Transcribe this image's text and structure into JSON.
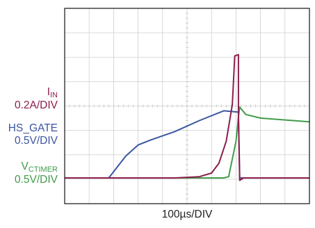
{
  "chart_data": {
    "type": "line",
    "title": "",
    "grid": true,
    "x_divisions": 10,
    "y_divisions": 8,
    "xlabel": "100µs/DIV",
    "x_unit_per_div": "100µs",
    "series": [
      {
        "name_main": "I",
        "name_sub": "IN",
        "scale": "0.2A/DIV",
        "color": "#8c1d4a",
        "x_div": [
          0,
          1.8,
          4.5,
          5.5,
          6.0,
          6.3,
          6.6,
          6.85,
          6.95,
          7.1,
          7.1,
          7.15,
          7.3,
          10
        ],
        "y_div": [
          0.0,
          0.0,
          0.0,
          0.05,
          0.2,
          0.6,
          1.5,
          3.0,
          5.0,
          5.05,
          2.5,
          -0.1,
          0.0,
          0.0
        ]
      },
      {
        "name_main": "HS_GATE",
        "name_sub": "",
        "scale": "0.5V/DIV",
        "color": "#3b55a0",
        "x_div": [
          0,
          1.8,
          2.5,
          3.0,
          3.5,
          4.5,
          5.5,
          6.5,
          7.1,
          7.15,
          7.3,
          10
        ],
        "y_div": [
          0.0,
          0.0,
          0.9,
          1.35,
          1.55,
          1.9,
          2.35,
          2.75,
          2.7,
          0.0,
          0.0,
          0.0
        ]
      },
      {
        "name_main": "V",
        "name_sub": "CTIMER",
        "scale": "0.5V/DIV",
        "color": "#3f9b4a",
        "x_div": [
          0,
          4.5,
          6.5,
          6.7,
          7.0,
          7.1,
          7.15,
          7.4,
          8.0,
          10
        ],
        "y_div": [
          0.0,
          0.0,
          0.0,
          0.05,
          1.5,
          2.5,
          2.9,
          2.6,
          2.45,
          2.3
        ]
      }
    ]
  }
}
